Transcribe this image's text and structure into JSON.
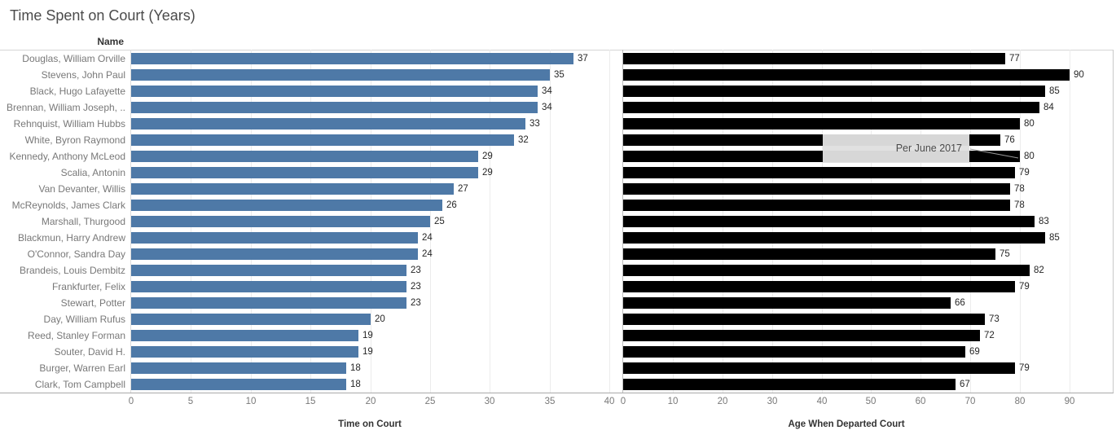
{
  "title": "Time Spent on Court (Years)",
  "row_header": "Name",
  "annotation": {
    "text": "Per June 2017"
  },
  "colors": {
    "left_bar": "#4e79a7",
    "right_bar": "#000000",
    "grid": "#ececec",
    "border": "#c9c9c9",
    "axis_rule": "#a9a9a9",
    "tick_label": "#787878",
    "name_label": "#787878",
    "data_label": "#262626",
    "title_color": "#4b4b4b",
    "annotation_bg": "#e0e0e0"
  },
  "chart_data": [
    {
      "type": "bar",
      "orientation": "horizontal",
      "axis_title": "Time on Court",
      "bar_color": "#4e79a7",
      "grid": true,
      "xlim": [
        0,
        40
      ],
      "ticks": [
        0,
        5,
        10,
        15,
        20,
        25,
        30,
        35,
        40
      ],
      "categories": [
        "Douglas, William Orville",
        "Stevens, John Paul",
        "Black, Hugo Lafayette",
        "Brennan, William Joseph, ..",
        "Rehnquist, William Hubbs",
        "White, Byron Raymond",
        "Kennedy, Anthony McLeod",
        "Scalia, Antonin",
        "Van Devanter, Willis",
        "McReynolds, James Clark",
        "Marshall, Thurgood",
        "Blackmun, Harry Andrew",
        "O'Connor, Sandra Day",
        "Brandeis, Louis Dembitz",
        "Frankfurter, Felix",
        "Stewart, Potter",
        "Day, William Rufus",
        "Reed, Stanley Forman",
        "Souter, David H.",
        "Burger, Warren Earl",
        "Clark, Tom Campbell"
      ],
      "values": [
        37,
        35,
        34,
        34,
        33,
        32,
        29,
        29,
        27,
        26,
        25,
        24,
        24,
        23,
        23,
        23,
        20,
        19,
        19,
        18,
        18
      ]
    },
    {
      "type": "bar",
      "orientation": "horizontal",
      "axis_title": "Age When Departed Court",
      "bar_color": "#000000",
      "grid": true,
      "xlim": [
        0,
        99
      ],
      "ticks": [
        0,
        10,
        20,
        30,
        40,
        50,
        60,
        70,
        80,
        90
      ],
      "categories": [
        "Douglas, William Orville",
        "Stevens, John Paul",
        "Black, Hugo Lafayette",
        "Brennan, William Joseph, ..",
        "Rehnquist, William Hubbs",
        "White, Byron Raymond",
        "Kennedy, Anthony McLeod",
        "Scalia, Antonin",
        "Van Devanter, Willis",
        "McReynolds, James Clark",
        "Marshall, Thurgood",
        "Blackmun, Harry Andrew",
        "O'Connor, Sandra Day",
        "Brandeis, Louis Dembitz",
        "Frankfurter, Felix",
        "Stewart, Potter",
        "Day, William Rufus",
        "Reed, Stanley Forman",
        "Souter, David H.",
        "Burger, Warren Earl",
        "Clark, Tom Campbell"
      ],
      "values": [
        77,
        90,
        85,
        84,
        80,
        76,
        80,
        79,
        78,
        78,
        83,
        85,
        75,
        82,
        79,
        66,
        73,
        72,
        69,
        79,
        67
      ]
    }
  ]
}
